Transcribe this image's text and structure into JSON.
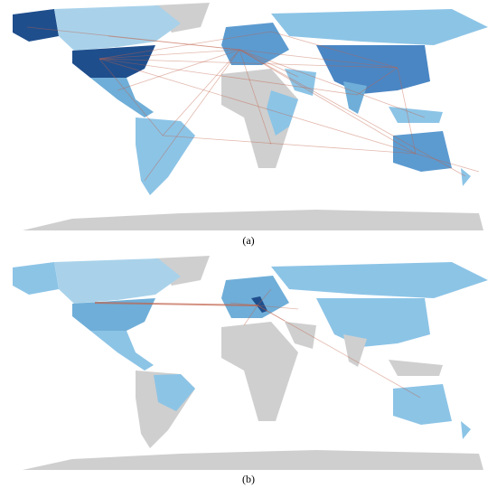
{
  "panels": [
    {
      "caption": "(a)"
    },
    {
      "caption": "(b)"
    }
  ]
}
